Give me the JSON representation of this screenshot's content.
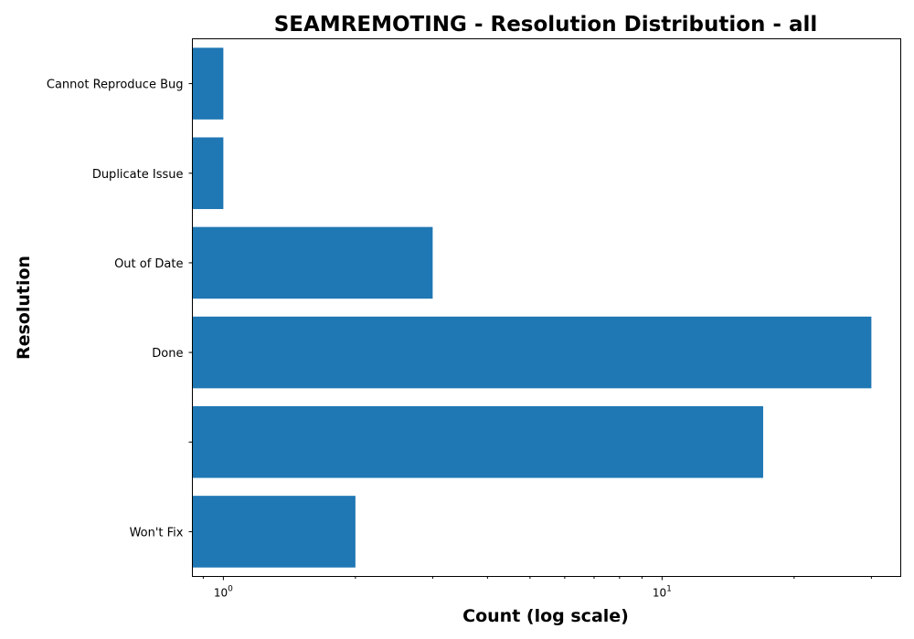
{
  "chart_data": {
    "type": "bar",
    "orientation": "horizontal",
    "title": "SEAMREMOTING - Resolution Distribution - all",
    "xlabel": "Count (log scale)",
    "ylabel": "Resolution",
    "x_scale": "log",
    "xlim": [
      0.85,
      35
    ],
    "x_major_ticks": [
      {
        "value": 1,
        "base": "10",
        "exponent": "0"
      },
      {
        "value": 10,
        "base": "10",
        "exponent": "1"
      }
    ],
    "categories": [
      "Cannot Reproduce Bug",
      "Duplicate Issue",
      "Out of Date",
      "Done",
      "",
      "Won't Fix"
    ],
    "values": [
      1,
      1,
      3,
      30,
      17,
      2
    ],
    "bar_color": "#1f77b4",
    "grid": false,
    "legend": "none"
  }
}
